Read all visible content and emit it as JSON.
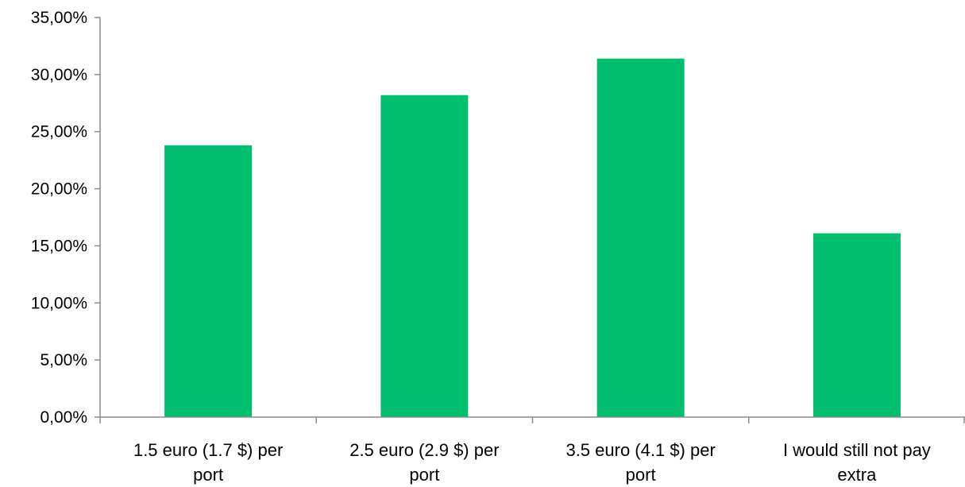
{
  "chart_data": {
    "type": "bar",
    "title": "",
    "xlabel": "",
    "ylabel": "",
    "categories": [
      [
        "1.5 euro (1.7 $) per",
        "port"
      ],
      [
        "2.5 euro (2.9 $) per",
        "port"
      ],
      [
        "3.5 euro (4.1 $) per",
        "port"
      ],
      [
        "I would still not pay",
        "extra"
      ]
    ],
    "values": [
      23.8,
      28.2,
      31.4,
      16.1
    ],
    "ylim": [
      0,
      35
    ],
    "yticks": [
      "0,00%",
      "5,00%",
      "10,00%",
      "15,00%",
      "20,00%",
      "25,00%",
      "30,00%",
      "35,00%"
    ],
    "ytick_values": [
      0,
      5,
      10,
      15,
      20,
      25,
      30,
      35
    ],
    "grid": false,
    "legend": "none",
    "bar_color": "#00BF6F",
    "axis_color": "#8C8C8C"
  }
}
